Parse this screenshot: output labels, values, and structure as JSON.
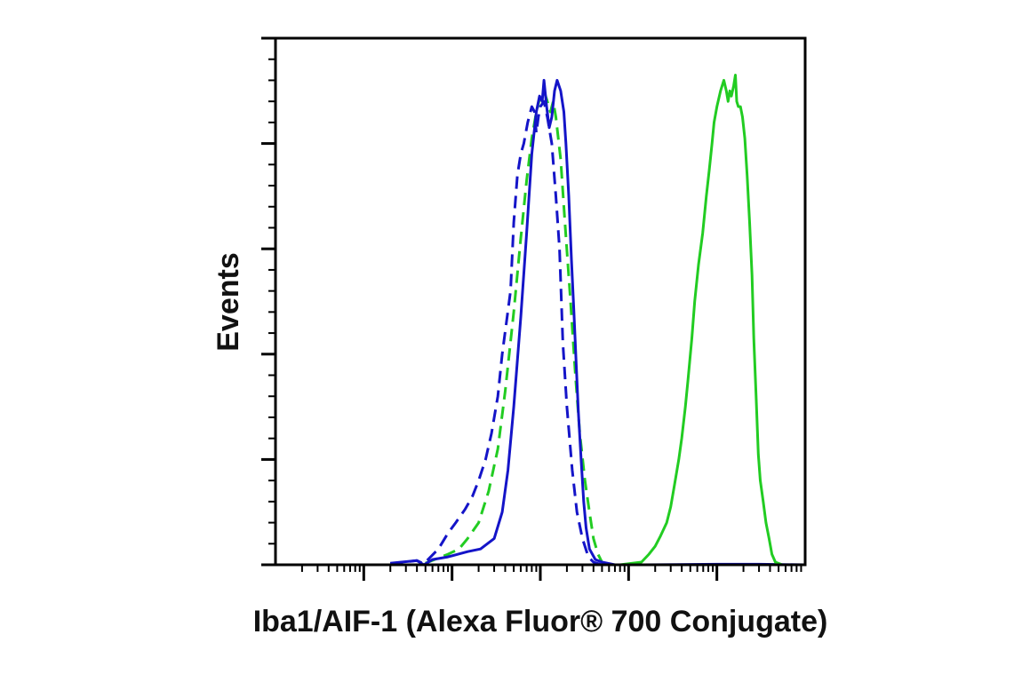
{
  "chart_data": {
    "type": "line",
    "title": "",
    "xlabel": "Iba1/AIF-1 (Alexa Fluor® 700 Conjugate)",
    "ylabel": "Events",
    "x_scale": "log",
    "xlim": [
      10,
      10000000
    ],
    "ylim": [
      0,
      100
    ],
    "y_major_ticks": [
      0,
      20,
      40,
      60,
      80,
      100
    ],
    "grid": false,
    "legend": "none",
    "series": [
      {
        "line": "dashed",
        "color": "#1414c8",
        "points": [
          [
            200,
            0.2
          ],
          [
            400,
            0.8
          ],
          [
            480,
            0.2
          ],
          [
            700,
            3
          ],
          [
            900,
            6
          ],
          [
            1100,
            8
          ],
          [
            1400,
            10.5
          ],
          [
            1700,
            13
          ],
          [
            2000,
            16
          ],
          [
            2400,
            20
          ],
          [
            2800,
            25
          ],
          [
            3300,
            32
          ],
          [
            3700,
            40
          ],
          [
            4200,
            47
          ],
          [
            4600,
            52
          ],
          [
            5000,
            65
          ],
          [
            5500,
            74
          ],
          [
            6000,
            78
          ],
          [
            6500,
            80
          ],
          [
            7200,
            84
          ],
          [
            8000,
            87
          ],
          [
            8600,
            86
          ],
          [
            9000,
            82
          ],
          [
            9500,
            85
          ],
          [
            10000,
            87
          ],
          [
            11000,
            88
          ],
          [
            12000,
            85
          ],
          [
            13500,
            80
          ],
          [
            15000,
            70
          ],
          [
            16500,
            60
          ],
          [
            18000,
            42
          ],
          [
            20000,
            30
          ],
          [
            23000,
            18
          ],
          [
            26000,
            10
          ],
          [
            30000,
            5
          ],
          [
            35000,
            1.5
          ],
          [
            40000,
            0.5
          ],
          [
            50000,
            0
          ]
        ]
      },
      {
        "line": "dashed",
        "color": "#22cc22",
        "points": [
          [
            500,
            0.3
          ],
          [
            900,
            2
          ],
          [
            1200,
            3
          ],
          [
            1500,
            5
          ],
          [
            2000,
            8
          ],
          [
            2600,
            14
          ],
          [
            3300,
            22
          ],
          [
            4000,
            33
          ],
          [
            5000,
            48
          ],
          [
            6000,
            62
          ],
          [
            7000,
            73
          ],
          [
            8000,
            81
          ],
          [
            9000,
            86
          ],
          [
            10000,
            89
          ],
          [
            11000,
            90
          ],
          [
            12000,
            88
          ],
          [
            13000,
            86
          ],
          [
            14000,
            88
          ],
          [
            15000,
            85
          ],
          [
            17000,
            77
          ],
          [
            19000,
            65
          ],
          [
            22000,
            50
          ],
          [
            25000,
            36
          ],
          [
            28000,
            25
          ],
          [
            32000,
            16
          ],
          [
            36000,
            10
          ],
          [
            40000,
            5
          ],
          [
            45000,
            2
          ],
          [
            50000,
            0.5
          ],
          [
            60000,
            0
          ]
        ]
      },
      {
        "line": "solid",
        "color": "#1414c8",
        "points": [
          [
            200,
            0.3
          ],
          [
            400,
            0.8
          ],
          [
            480,
            0
          ],
          [
            600,
            1
          ],
          [
            900,
            1.5
          ],
          [
            1500,
            2.5
          ],
          [
            2100,
            3
          ],
          [
            3000,
            5
          ],
          [
            3700,
            10
          ],
          [
            4300,
            18
          ],
          [
            5000,
            30
          ],
          [
            6000,
            47
          ],
          [
            7000,
            63
          ],
          [
            8000,
            78
          ],
          [
            9000,
            86
          ],
          [
            9800,
            89
          ],
          [
            10500,
            88
          ],
          [
            11000,
            92
          ],
          [
            11800,
            87
          ],
          [
            12600,
            83
          ],
          [
            13500,
            85
          ],
          [
            14500,
            90
          ],
          [
            15500,
            92
          ],
          [
            17000,
            90
          ],
          [
            18500,
            86
          ],
          [
            19500,
            80
          ],
          [
            21000,
            70
          ],
          [
            22500,
            58
          ],
          [
            24000,
            48
          ],
          [
            25500,
            38
          ],
          [
            27000,
            29
          ],
          [
            29000,
            20
          ],
          [
            31000,
            12
          ],
          [
            33000,
            7
          ],
          [
            36000,
            3
          ],
          [
            42000,
            1
          ],
          [
            50000,
            0.5
          ],
          [
            70000,
            0
          ],
          [
            150000,
            0
          ],
          [
            1000000,
            0.1
          ],
          [
            3000000,
            0.1
          ],
          [
            10000000,
            0
          ]
        ]
      },
      {
        "line": "solid",
        "color": "#22cc22",
        "points": [
          [
            10,
            0
          ],
          [
            80000,
            0
          ],
          [
            140000,
            0.5
          ],
          [
            170000,
            2
          ],
          [
            200000,
            3.5
          ],
          [
            230000,
            5.5
          ],
          [
            270000,
            8
          ],
          [
            300000,
            11
          ],
          [
            330000,
            15
          ],
          [
            370000,
            20
          ],
          [
            400000,
            24
          ],
          [
            440000,
            30
          ],
          [
            470000,
            35
          ],
          [
            520000,
            43
          ],
          [
            560000,
            50
          ],
          [
            620000,
            57
          ],
          [
            690000,
            63
          ],
          [
            760000,
            70
          ],
          [
            820000,
            75
          ],
          [
            880000,
            80
          ],
          [
            930000,
            84
          ],
          [
            1000000,
            87
          ],
          [
            1100000,
            90
          ],
          [
            1200000,
            92
          ],
          [
            1280000,
            90
          ],
          [
            1340000,
            88
          ],
          [
            1400000,
            90
          ],
          [
            1460000,
            89
          ],
          [
            1550000,
            91
          ],
          [
            1620000,
            93
          ],
          [
            1680000,
            88
          ],
          [
            1750000,
            87
          ],
          [
            1850000,
            87
          ],
          [
            1950000,
            85
          ],
          [
            2070000,
            81
          ],
          [
            2200000,
            74
          ],
          [
            2350000,
            65
          ],
          [
            2500000,
            55
          ],
          [
            2620000,
            43
          ],
          [
            2780000,
            32
          ],
          [
            2950000,
            21
          ],
          [
            3100000,
            16
          ],
          [
            3350000,
            12
          ],
          [
            3600000,
            8
          ],
          [
            3900000,
            5
          ],
          [
            4200000,
            2
          ],
          [
            4600000,
            0.5
          ],
          [
            5500000,
            0
          ],
          [
            10000000,
            0
          ]
        ]
      }
    ]
  }
}
